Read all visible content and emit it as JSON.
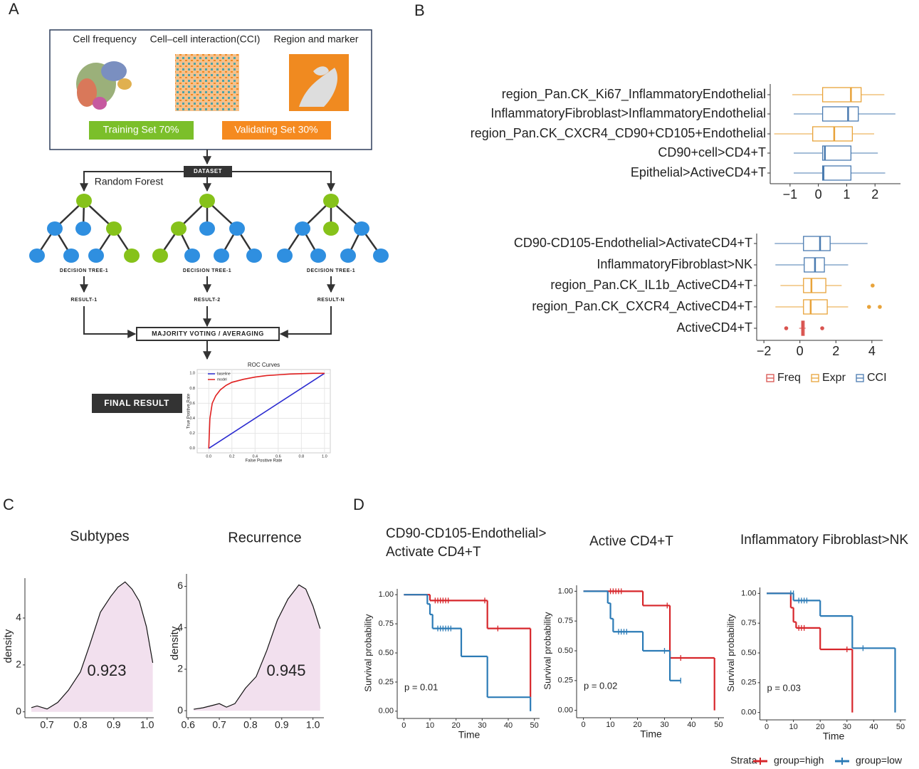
{
  "panels": [
    "A",
    "B",
    "C",
    "D"
  ],
  "diagram": {
    "sources": [
      "Cell frequency",
      "Cell–cell interaction(CCI)",
      "Region and marker"
    ],
    "training": "Training Set 70%",
    "validating": "Validating Set 30%",
    "dataset": "DATASET",
    "method": "Random Forest",
    "trees": [
      "DECISION TREE-1",
      "DECISION TREE-1",
      "DECISION TREE-1"
    ],
    "results": [
      "RESULT-1",
      "RESULT-2",
      "RESULT-N"
    ],
    "aggregate": "MAJORITY VOTING / AVERAGING",
    "final": "FINAL RESULT"
  },
  "chart_data": [
    {
      "type": "line",
      "title": "ROC Curves",
      "xlabel": "False Positive Rate",
      "ylabel": "True Positive Rate",
      "xlim": [
        -0.1,
        1.05
      ],
      "ylim": [
        -0.06,
        1.05
      ],
      "grid": true,
      "legend": "upper left",
      "xticks": [
        {
          "value": 0,
          "label": "0.0"
        },
        0.2,
        0.4,
        0.6,
        0.8,
        {
          "value": 1,
          "label": "1.0"
        }
      ],
      "yticks": [
        {
          "value": 0,
          "label": "0.0"
        },
        0.2,
        0.4,
        0.6,
        0.8,
        {
          "value": 1,
          "label": "1.0"
        }
      ],
      "series": [
        {
          "name": "baseline",
          "color": "#2b2bd0",
          "x": [
            0,
            1
          ],
          "values": [
            0,
            1
          ]
        },
        {
          "name": "model",
          "color": "#e02020",
          "x": [
            0,
            0.01,
            0.03,
            0.06,
            0.1,
            0.15,
            0.2,
            0.3,
            0.4,
            0.5,
            0.6,
            0.7,
            0.8,
            0.9,
            1
          ],
          "values": [
            0,
            0.4,
            0.6,
            0.7,
            0.78,
            0.84,
            0.88,
            0.92,
            0.95,
            0.97,
            0.98,
            0.99,
            0.995,
            1,
            1
          ]
        }
      ]
    },
    {
      "type": "boxplot",
      "legend": "bottom",
      "series": [
        {
          "name": "Freq",
          "color": "#d9534f"
        },
        {
          "name": "Expr",
          "color": "#e8a33a"
        },
        {
          "name": "CCI",
          "color": "#4a7bb0"
        }
      ],
      "facets": [
        {
          "categories": [
            "region_Pan.CK_Ki67_InflammatoryEndothelial",
            "InflammatoryFibroblast>InflammatoryEndothelial",
            "region_Pan.CK_CXCR4_CD90+CD105+Endothelial",
            "CD90+cell>CD4+T",
            "Epithelial>ActiveCD4+T"
          ],
          "xlim": [
            -1.7,
            2.9
          ],
          "xticks": [
            {
              "value": -1,
              "label": "−1"
            },
            0,
            1,
            2
          ],
          "values": [
            [
              null,
              null,
              null,
              null,
              null
            ],
            [
              {
                "min": -0.92,
                "q1": 0.15,
                "median": 1.15,
                "q3": 1.51,
                "max": 2.33,
                "outliers": []
              },
              null,
              {
                "min": -1.56,
                "q1": -0.2,
                "median": 0.56,
                "q3": 1.2,
                "max": 1.97,
                "outliers": []
              },
              null,
              null
            ],
            [
              null,
              {
                "min": -0.87,
                "q1": 0.15,
                "median": 1.05,
                "q3": 1.41,
                "max": 2.72,
                "outliers": []
              },
              null,
              {
                "min": -0.87,
                "q1": 0.15,
                "median": 0.23,
                "q3": 1.15,
                "max": 2.1,
                "outliers": []
              },
              {
                "min": -0.87,
                "q1": 0.15,
                "median": 0.18,
                "q3": 1.15,
                "max": 2.36,
                "outliers": []
              }
            ]
          ]
        },
        {
          "categories": [
            "CD90-CD105-Endothelial>ActivateCD4+T",
            "InflammatoryFibroblast>NK",
            "region_Pan.CK_IL1b_ActiveCD4+T",
            "region_Pan.CK_CXCR4_ActiveCD4+T",
            "ActiveCD4+T"
          ],
          "xlim": [
            -2.4,
            4.6
          ],
          "xticks": [
            {
              "value": -2,
              "label": "−2"
            },
            0,
            2,
            4
          ],
          "values": [
            [
              null,
              null,
              null,
              null,
              {
                "min": -0.04,
                "q1": 0.1,
                "median": 0.16,
                "q3": 0.24,
                "max": 0.32,
                "outliers": [
                  -0.76,
                  1.24
                ]
              }
            ],
            [
              null,
              null,
              {
                "min": -1.08,
                "q1": 0.2,
                "median": 0.64,
                "q3": 1.44,
                "max": 2.32,
                "outliers": [
                  4.04
                ]
              },
              {
                "min": -1.36,
                "q1": 0.2,
                "median": 0.6,
                "q3": 1.52,
                "max": 2.68,
                "outliers": [
                  3.84,
                  4.44
                ]
              },
              null
            ],
            [
              {
                "min": -1.4,
                "q1": 0.2,
                "median": 1.12,
                "q3": 1.68,
                "max": 3.76,
                "outliers": []
              },
              {
                "min": -1.36,
                "q1": 0.24,
                "median": 0.84,
                "q3": 1.36,
                "max": 2.68,
                "outliers": []
              },
              null,
              null,
              null
            ]
          ]
        }
      ]
    },
    {
      "type": "area",
      "title": "Subtypes",
      "ylabel": "density",
      "annotation": "0.923",
      "color": "#f2e0ee",
      "xlim": [
        0.64,
        1.02
      ],
      "ylim": [
        -0.1,
        5.7
      ],
      "xticks": [
        0.7,
        0.8,
        0.9,
        {
          "value": 1,
          "label": "1.0"
        }
      ],
      "yticks": [
        0,
        2,
        4
      ],
      "x": [
        0.653,
        0.67,
        0.7,
        0.732,
        0.764,
        0.8,
        0.828,
        0.86,
        0.891,
        0.913,
        0.934,
        0.955,
        0.977,
        0.998,
        1.017
      ],
      "values": [
        0.18,
        0.25,
        0.12,
        0.4,
        0.92,
        1.7,
        2.86,
        4.25,
        4.92,
        5.32,
        5.54,
        5.23,
        4.71,
        3.63,
        2.09
      ]
    },
    {
      "type": "area",
      "title": "Recurrence",
      "ylabel": "density",
      "annotation": "0.945",
      "color": "#f2e0ee",
      "xlim": [
        0.595,
        1.035
      ],
      "ylim": [
        -0.1,
        6.6
      ],
      "xticks": [
        0.6,
        0.7,
        0.8,
        0.9,
        {
          "value": 1,
          "label": "1.0"
        }
      ],
      "yticks": [
        0,
        2,
        4,
        6
      ],
      "x": [
        0.618,
        0.648,
        0.682,
        0.7,
        0.723,
        0.75,
        0.784,
        0.818,
        0.852,
        0.886,
        0.92,
        0.955,
        0.977,
        1.0,
        1.023
      ],
      "values": [
        0.07,
        0.14,
        0.27,
        0.34,
        0.17,
        0.34,
        1.09,
        1.64,
        2.9,
        4.37,
        5.39,
        6.07,
        5.87,
        5.05,
        3.96
      ]
    },
    {
      "type": "survival",
      "xlabel": "Time",
      "ylabel": "Survival probability",
      "legend_title": "Strata",
      "legend": "bottom",
      "series": [
        {
          "name": "group=high",
          "color": "#d7262b"
        },
        {
          "name": "group=low",
          "color": "#2c7bb6"
        }
      ],
      "facets": [
        {
          "title": [
            "CD90-CD105-Endothelial>",
            "Activate CD4+T"
          ],
          "annotation": "p = 0.01",
          "xlim": [
            -2,
            52
          ],
          "ylim": [
            -0.05,
            1.05
          ],
          "xticks": [
            0,
            10,
            20,
            30,
            40,
            50
          ],
          "yticks": [
            {
              "value": 0,
              "label": "0.00"
            },
            0.25,
            {
              "value": 0.5,
              "label": "0.50"
            },
            0.75,
            {
              "value": 1,
              "label": "1.00"
            }
          ],
          "curves": [
            {
              "x": [
                0,
                10,
                32,
                48.5
              ],
              "values": [
                1,
                0.95,
                0.71,
                0.12
              ],
              "censor_x": [
                12,
                13,
                14,
                15,
                16,
                17,
                31,
                36
              ],
              "censor_values": [
                0.95,
                0.95,
                0.95,
                0.95,
                0.95,
                0.95,
                0.95,
                0.71
              ]
            },
            {
              "x": [
                0,
                9,
                10,
                11,
                22,
                32,
                48.5
              ],
              "values": [
                1,
                0.92,
                0.83,
                0.71,
                0.47,
                0.12,
                0
              ],
              "censor_x": [
                13,
                14,
                15,
                16,
                17,
                18
              ],
              "censor_values": [
                0.71,
                0.71,
                0.71,
                0.71,
                0.71,
                0.71
              ]
            }
          ]
        },
        {
          "title": [
            "Active CD4+T"
          ],
          "annotation": "p = 0.02",
          "xlim": [
            -2,
            52
          ],
          "ylim": [
            -0.05,
            1.05
          ],
          "xticks": [
            0,
            10,
            20,
            30,
            40,
            50
          ],
          "yticks": [
            {
              "value": 0,
              "label": "0.00"
            },
            0.25,
            {
              "value": 0.5,
              "label": "0.50"
            },
            0.75,
            {
              "value": 1,
              "label": "1.00"
            }
          ],
          "curves": [
            {
              "x": [
                0,
                22,
                32,
                48.5
              ],
              "values": [
                1,
                0.88,
                0.44,
                0
              ],
              "censor_x": [
                10,
                11,
                12,
                13,
                14,
                31,
                36
              ],
              "censor_values": [
                1,
                1,
                1,
                1,
                1,
                0.88,
                0.44
              ]
            },
            {
              "x": [
                0,
                9,
                10,
                11,
                22,
                32,
                36
              ],
              "values": [
                1,
                0.9,
                0.77,
                0.66,
                0.5,
                0.25,
                0.25
              ],
              "censor_x": [
                13,
                14,
                15,
                16,
                30,
                36
              ],
              "censor_values": [
                0.66,
                0.66,
                0.66,
                0.66,
                0.5,
                0.25
              ]
            }
          ]
        },
        {
          "title": [
            "Inflammatory Fibroblast>NK"
          ],
          "annotation": "p = 0.03",
          "xlim": [
            -2,
            52
          ],
          "ylim": [
            -0.05,
            1.05
          ],
          "xticks": [
            0,
            10,
            20,
            30,
            40,
            50
          ],
          "yticks": [
            {
              "value": 0,
              "label": "0.00"
            },
            0.25,
            {
              "value": 0.5,
              "label": "0.50"
            },
            0.75,
            {
              "value": 1,
              "label": "1.00"
            }
          ],
          "curves": [
            {
              "x": [
                0,
                9,
                10,
                11,
                20,
                32
              ],
              "values": [
                1,
                0.88,
                0.76,
                0.71,
                0.53,
                0
              ],
              "censor_x": [
                12,
                13,
                14,
                30
              ],
              "censor_values": [
                0.71,
                0.71,
                0.71,
                0.53
              ]
            },
            {
              "x": [
                0,
                10,
                20,
                32,
                48
              ],
              "values": [
                1,
                0.94,
                0.81,
                0.54,
                0
              ],
              "censor_x": [
                9,
                10,
                12,
                13,
                14,
                15,
                36
              ],
              "censor_values": [
                1,
                1,
                0.94,
                0.94,
                0.94,
                0.94,
                0.54
              ]
            }
          ]
        }
      ]
    }
  ]
}
